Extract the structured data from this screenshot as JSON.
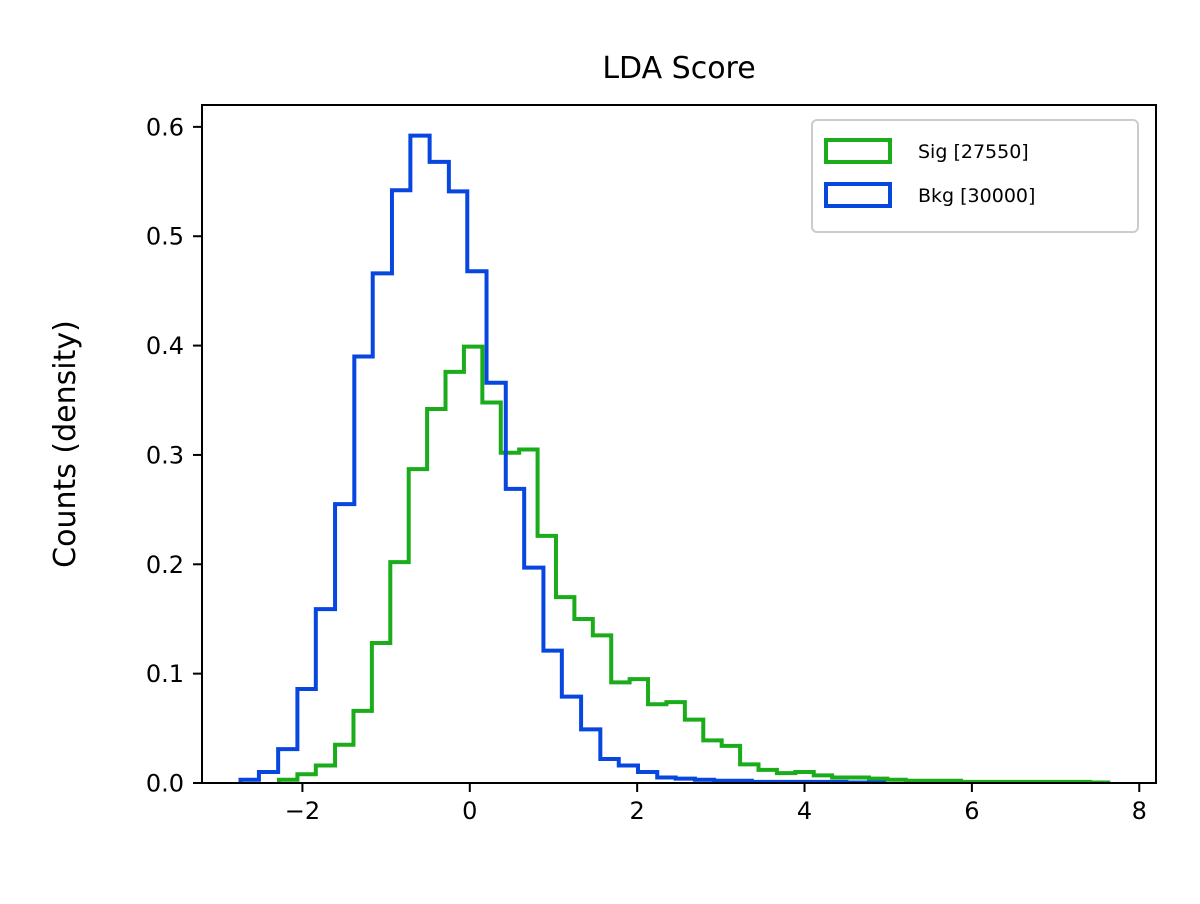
{
  "chart_data": {
    "type": "histogram",
    "title": "LDA Score",
    "xlabel": "",
    "ylabel": "Counts (density)",
    "xlim": [
      -3.2,
      8.2
    ],
    "ylim": [
      0.0,
      0.62
    ],
    "grid": false,
    "legend_position": "top-right",
    "x_ticks": [
      {
        "value": -2,
        "label": "−2"
      },
      {
        "value": 0,
        "label": "0"
      },
      {
        "value": 2,
        "label": "2"
      },
      {
        "value": 4,
        "label": "4"
      },
      {
        "value": 6,
        "label": "6"
      },
      {
        "value": 8,
        "label": "8"
      }
    ],
    "y_ticks": [
      {
        "value": 0.0,
        "label": "0.0"
      },
      {
        "value": 0.1,
        "label": "0.1"
      },
      {
        "value": 0.2,
        "label": "0.2"
      },
      {
        "value": 0.3,
        "label": "0.3"
      },
      {
        "value": 0.4,
        "label": "0.4"
      },
      {
        "value": 0.5,
        "label": "0.5"
      },
      {
        "value": 0.6,
        "label": "0.6"
      }
    ],
    "series": [
      {
        "name": "Sig [27550]",
        "color": "#1aac1a",
        "bin_edges": [
          -2.28,
          -2.06,
          -1.84,
          -1.61,
          -1.39,
          -1.17,
          -0.95,
          -0.73,
          -0.51,
          -0.29,
          -0.07,
          0.15,
          0.37,
          0.59,
          0.81,
          1.03,
          1.25,
          1.47,
          1.69,
          1.91,
          2.13,
          2.35,
          2.57,
          2.79,
          3.01,
          3.23,
          3.45,
          3.67,
          3.89,
          4.11,
          4.33,
          4.55,
          4.77,
          4.99,
          5.21,
          5.43,
          5.65,
          5.87,
          6.09,
          6.31,
          6.53,
          6.75,
          6.97,
          7.19,
          7.41,
          7.63
        ],
        "values": [
          0.003,
          0.008,
          0.016,
          0.035,
          0.066,
          0.128,
          0.202,
          0.287,
          0.342,
          0.376,
          0.399,
          0.348,
          0.302,
          0.305,
          0.226,
          0.17,
          0.15,
          0.135,
          0.092,
          0.095,
          0.072,
          0.074,
          0.058,
          0.039,
          0.034,
          0.017,
          0.012,
          0.009,
          0.01,
          0.007,
          0.005,
          0.005,
          0.004,
          0.003,
          0.002,
          0.002,
          0.002,
          0.001,
          0.001,
          0.001,
          0.001,
          0.001,
          0.001,
          0.001,
          0.0005
        ]
      },
      {
        "name": "Bkg [30000]",
        "color": "#0846e0",
        "bin_edges": [
          -2.74,
          -2.52,
          -2.29,
          -2.06,
          -1.84,
          -1.61,
          -1.38,
          -1.16,
          -0.93,
          -0.71,
          -0.48,
          -0.25,
          -0.03,
          0.2,
          0.43,
          0.65,
          0.88,
          1.1,
          1.33,
          1.56,
          1.78,
          2.01,
          2.24,
          2.46,
          2.69,
          2.92,
          3.14,
          3.37,
          3.59,
          3.82,
          4.05,
          4.27,
          4.5,
          4.73,
          4.95
        ],
        "values": [
          0.003,
          0.01,
          0.031,
          0.086,
          0.159,
          0.255,
          0.39,
          0.466,
          0.542,
          0.592,
          0.568,
          0.541,
          0.468,
          0.366,
          0.269,
          0.197,
          0.121,
          0.079,
          0.049,
          0.022,
          0.016,
          0.01,
          0.005,
          0.004,
          0.003,
          0.002,
          0.002,
          0.001,
          0.001,
          0.001,
          0.001,
          0.001,
          0.0005,
          0.0005
        ]
      }
    ]
  }
}
